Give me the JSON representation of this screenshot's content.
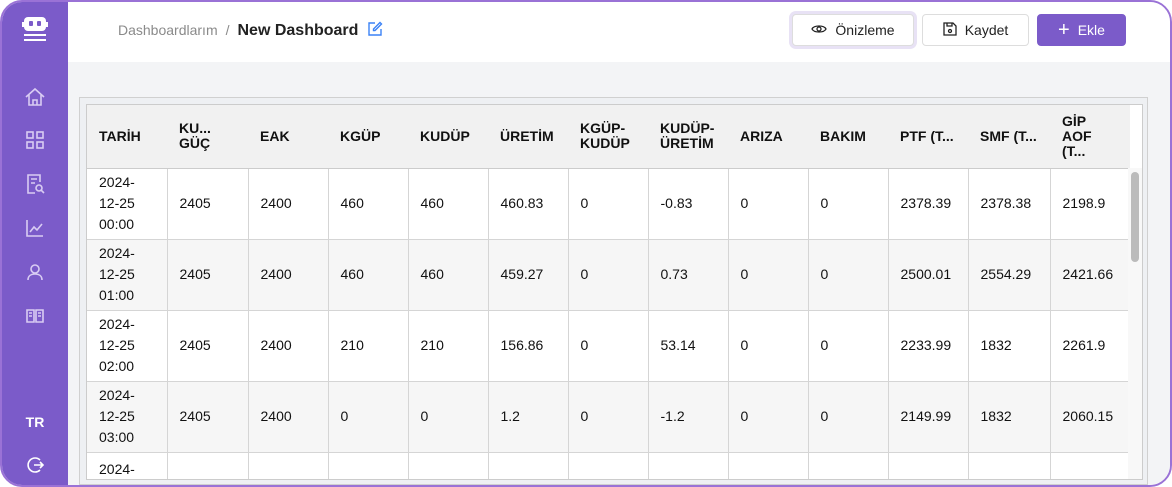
{
  "sidebar": {
    "items": [
      {
        "icon": "home-icon"
      },
      {
        "icon": "grid-icon"
      },
      {
        "icon": "report-search-icon"
      },
      {
        "icon": "chart-line-icon"
      },
      {
        "icon": "user-icon"
      },
      {
        "icon": "book-icon"
      }
    ],
    "language": "TR",
    "logout_icon": "logout-icon"
  },
  "breadcrumb": {
    "parent": "Dashboardlarım",
    "separator": "/",
    "current": "New Dashboard"
  },
  "toolbar": {
    "preview": "Önizleme",
    "save": "Kaydet",
    "add": "Ekle"
  },
  "colors": {
    "accent": "#7b5bc9",
    "edit_icon": "#3b82f6"
  },
  "table": {
    "columns": [
      "TARİH",
      "KU... GÜÇ",
      "EAK",
      "KGÜP",
      "KUDÜP",
      "ÜRETİM",
      "KGÜP-KUDÜP",
      "KUDÜP-ÜRETİM",
      "ARIZA",
      "BAKIM",
      "PTF (T...",
      "SMF (T...",
      "GİP AOF (T..."
    ],
    "rows": [
      [
        "2024-12-25 00:00",
        "2405",
        "2400",
        "460",
        "460",
        "460.83",
        "0",
        "-0.83",
        "0",
        "0",
        "2378.39",
        "2378.38",
        "2198.9"
      ],
      [
        "2024-12-25 01:00",
        "2405",
        "2400",
        "460",
        "460",
        "459.27",
        "0",
        "0.73",
        "0",
        "0",
        "2500.01",
        "2554.29",
        "2421.66"
      ],
      [
        "2024-12-25 02:00",
        "2405",
        "2400",
        "210",
        "210",
        "156.86",
        "0",
        "53.14",
        "0",
        "0",
        "2233.99",
        "1832",
        "2261.9"
      ],
      [
        "2024-12-25 03:00",
        "2405",
        "2400",
        "0",
        "0",
        "1.2",
        "0",
        "-1.2",
        "0",
        "0",
        "2149.99",
        "1832",
        "2060.15"
      ],
      [
        "2024-",
        "",
        "",
        "",
        "",
        "",
        "",
        "",
        "",
        "",
        "",
        "",
        ""
      ]
    ]
  }
}
